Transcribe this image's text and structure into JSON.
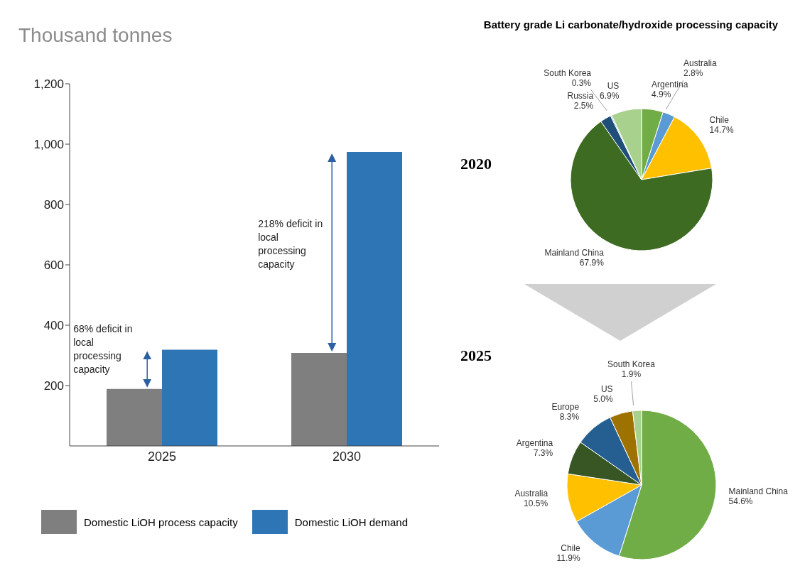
{
  "chart_data": [
    {
      "type": "bar",
      "ylabel": "Thousand tonnes",
      "categories": [
        "2025",
        "2030"
      ],
      "series": [
        {
          "name": "Domestic LiOH process capacity",
          "color": "#7f7f7f",
          "values": [
            189,
            308
          ]
        },
        {
          "name": "Domestic LiOH demand",
          "color": "#2e75b6",
          "values": [
            319,
            974
          ]
        }
      ],
      "ylim": [
        0,
        1200
      ],
      "yticks": [
        200,
        400,
        600,
        800,
        {
          "value": 1000,
          "label": "1,000"
        },
        {
          "value": 1200,
          "label": "1,200"
        }
      ],
      "legend": "bottom",
      "annotations": [
        {
          "text": "68% deficit in local processing capacity",
          "x": "2025",
          "y": 320
        },
        {
          "text": "218% deficit in local processing capacity",
          "x": "2030",
          "y": 668
        }
      ]
    },
    {
      "type": "pie",
      "title": "Battery grade Li carbonate/hydroxide processing capacity",
      "subtitle": "2020",
      "categories": [
        "Argentina",
        "Australia",
        "Chile",
        "Mainland China",
        "Russia",
        "South Korea",
        "US"
      ],
      "values": [
        4.9,
        2.8,
        14.7,
        67.9,
        2.5,
        0.3,
        6.9
      ],
      "value_labels": [
        "4.9%",
        "2.8%",
        "14.7%",
        "67.9%",
        "2.5%",
        "0.3%",
        "6.9%"
      ],
      "colors": [
        "#70ad47",
        "#5b9bd5",
        "#ffc000",
        "#3d6b22",
        "#1f4e79",
        "#9dc3e6",
        "#a9d18e"
      ]
    },
    {
      "type": "pie",
      "title": "2025",
      "categories": [
        "Mainland China",
        "Chile",
        "Australia",
        "Argentina",
        "Europe",
        "US",
        "South Korea"
      ],
      "values": [
        54.6,
        11.9,
        10.5,
        7.3,
        8.3,
        5.0,
        1.9
      ],
      "value_labels": [
        "54.6%",
        "11.9%",
        "10.5%",
        "7.3%",
        "8.3%",
        "5.0%",
        "1.9%"
      ],
      "colors": [
        "#70ad47",
        "#5b9bd5",
        "#ffc000",
        "#375623",
        "#255e91",
        "#9e7200",
        "#a9d18e"
      ]
    }
  ]
}
